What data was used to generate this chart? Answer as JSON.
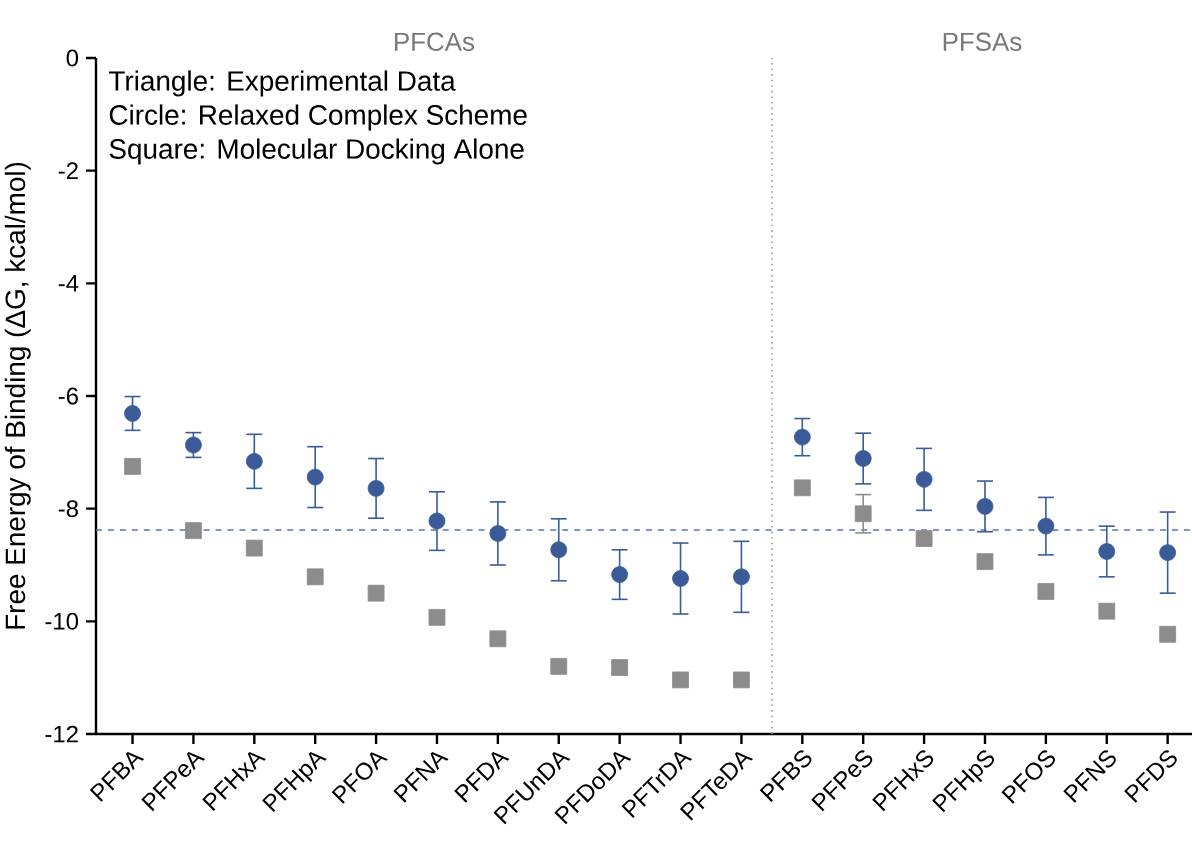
{
  "chart_data": {
    "type": "scatter",
    "categories": [
      "PFBA",
      "PFPeA",
      "PFHxA",
      "PFHpA",
      "PFOA",
      "PFNA",
      "PFDA",
      "PFUnDA",
      "PFDoDA",
      "PFTrDA",
      "PFTeDA",
      "PFBS",
      "PFPeS",
      "PFHxS",
      "PFHpS",
      "PFOS",
      "PFNS",
      "PFDS"
    ],
    "ylabel": "Free Energy of Binding (ΔG, kcal/mol)",
    "ylim": [
      -12,
      0
    ],
    "yticks": [
      -12,
      -10,
      -8,
      -6,
      -4,
      -2,
      0
    ],
    "grid": false,
    "annotations": [
      "Triangle: Experimental Data",
      "Circle: Relaxed Complex Scheme",
      "Square: Molecular Docking Alone",
      "PFCAs",
      "PFSAs"
    ],
    "ref_lines": [
      {
        "axis": "y",
        "value": -8.38,
        "color": "#5a74a8",
        "line_style": "dashed"
      }
    ],
    "series": [
      {
        "color": "#3a5a98",
        "marker": "circle",
        "values": [
          -6.31,
          -6.87,
          -7.16,
          -7.44,
          -7.64,
          -8.22,
          -8.44,
          -8.73,
          -9.17,
          -9.24,
          -9.21,
          -6.73,
          -7.11,
          -7.48,
          -7.96,
          -8.31,
          -8.76,
          -8.78
        ],
        "errors": [
          0.3,
          0.22,
          0.48,
          0.54,
          0.53,
          0.52,
          0.56,
          0.55,
          0.44,
          0.63,
          0.63,
          0.33,
          0.45,
          0.55,
          0.45,
          0.51,
          0.45,
          0.72
        ]
      },
      {
        "color": "#8c8c8c",
        "marker": "square",
        "values": [
          -7.25,
          -8.39,
          -8.7,
          -9.21,
          -9.5,
          -9.93,
          -10.31,
          -10.8,
          -10.82,
          -11.04,
          -11.04,
          -7.63,
          -8.09,
          -8.53,
          -8.94,
          -9.47,
          -9.82,
          -10.23
        ],
        "errors": [
          null,
          null,
          null,
          null,
          null,
          null,
          null,
          null,
          0.1,
          null,
          null,
          null,
          0.34,
          null,
          null,
          null,
          null,
          null
        ]
      }
    ]
  }
}
